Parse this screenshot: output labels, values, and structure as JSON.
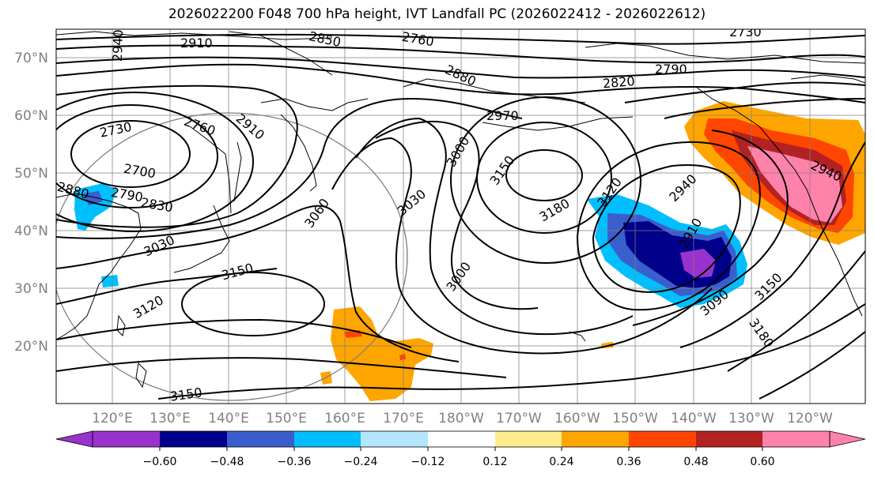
{
  "title": "2026022200 F048 700 hPa height, IVT Landfall PC (2026022412 - 2026022612)",
  "map": {
    "lat_labels": [
      "70°N",
      "60°N",
      "50°N",
      "40°N",
      "30°N",
      "20°N"
    ],
    "lon_labels": [
      "120°E",
      "130°E",
      "140°E",
      "150°E",
      "160°E",
      "170°E",
      "180°W",
      "170°W",
      "160°W",
      "150°W",
      "140°W",
      "130°W",
      "120°W"
    ],
    "contour_labels": [
      "2940",
      "2910",
      "2850",
      "2760",
      "2730",
      "2790",
      "2820",
      "2880",
      "2970",
      "2730",
      "2760",
      "2910",
      "2700",
      "2880",
      "2790",
      "2830",
      "3000",
      "3150",
      "3180",
      "3120",
      "2940",
      "3030",
      "3060",
      "3030",
      "3150",
      "3120",
      "3000",
      "2910",
      "3090",
      "3150",
      "3180",
      "2940",
      "3150"
    ],
    "colors": {
      "land_outline": "#000000",
      "grid": "#808080",
      "contour": "#000000"
    }
  },
  "colorbar": {
    "ticks": [
      "−0.60",
      "−0.48",
      "−0.36",
      "−0.24",
      "−0.12",
      "0.12",
      "0.24",
      "0.36",
      "0.48",
      "0.60"
    ],
    "colors": [
      "#9932cc",
      "#00008b",
      "#3a5fcd",
      "#00bfff",
      "#b3e5fc",
      "#ffffff",
      "#ffec8b",
      "#ffa500",
      "#ff4500",
      "#b22222",
      "#ff82ab",
      "#ff82ab"
    ]
  }
}
